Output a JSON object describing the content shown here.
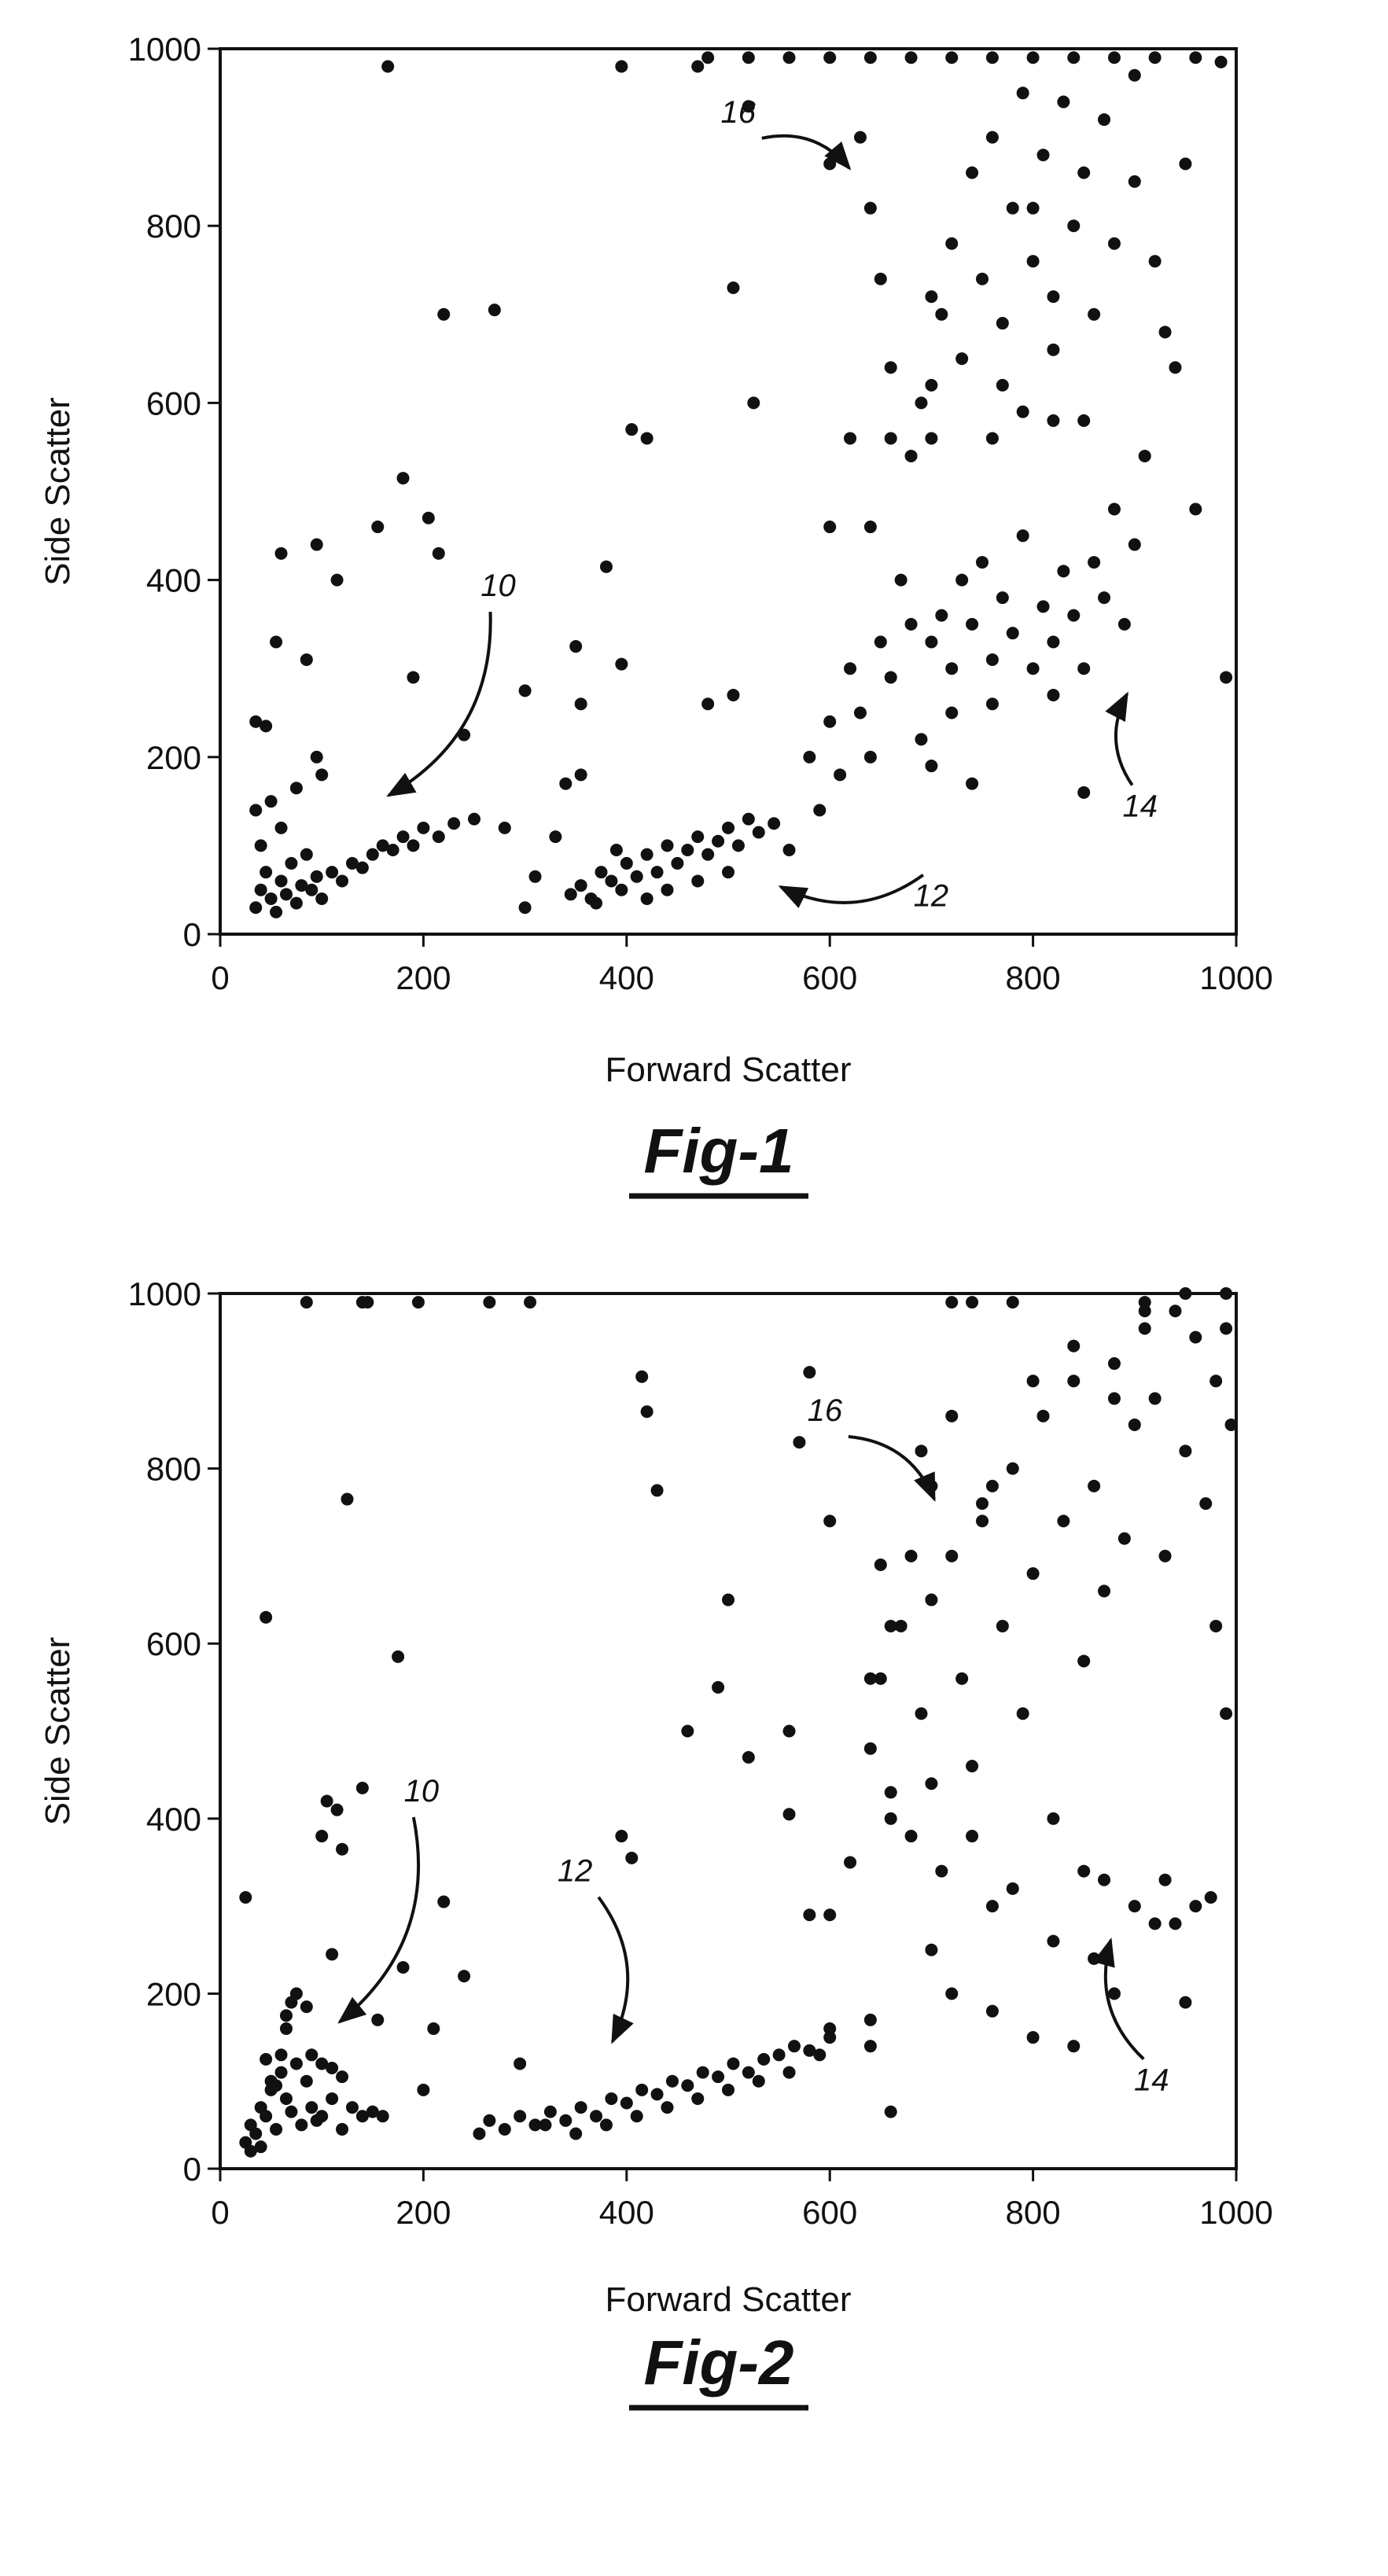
{
  "chart_data": [
    {
      "type": "scatter",
      "caption": "Fig-1",
      "x_label": "Forward Scatter",
      "y_label": "Side Scatter",
      "color": "#111111",
      "annotations": [
        "10",
        "12",
        "14",
        "16"
      ],
      "xlim": [
        0,
        1000
      ],
      "ylim": [
        0,
        1000
      ],
      "xticks": [
        0,
        200,
        400,
        600,
        800,
        1000
      ],
      "yticks": [
        0,
        200,
        400,
        600,
        800,
        1000
      ],
      "x": [
        35,
        40,
        45,
        50,
        55,
        60,
        65,
        70,
        75,
        80,
        85,
        90,
        95,
        100,
        110,
        120,
        130,
        140,
        150,
        160,
        170,
        180,
        190,
        200,
        215,
        230,
        250,
        40,
        35,
        50,
        45,
        35,
        60,
        75,
        95,
        100,
        55,
        60,
        85,
        95,
        115,
        155,
        180,
        190,
        205,
        215,
        165,
        220,
        270,
        300,
        240,
        280,
        310,
        300,
        345,
        355,
        365,
        375,
        385,
        395,
        400,
        410,
        420,
        430,
        440,
        450,
        460,
        470,
        480,
        490,
        500,
        510,
        520,
        530,
        545,
        560,
        420,
        440,
        470,
        500,
        390,
        370,
        330,
        340,
        355,
        350,
        355,
        380,
        395,
        405,
        420,
        505,
        525,
        395,
        480,
        505,
        580,
        590,
        600,
        610,
        620,
        630,
        640,
        650,
        660,
        670,
        680,
        690,
        600,
        640,
        660,
        700,
        710,
        720,
        730,
        740,
        750,
        760,
        770,
        780,
        790,
        800,
        810,
        820,
        830,
        840,
        850,
        860,
        870,
        880,
        890,
        900,
        720,
        760,
        820,
        850,
        910,
        960,
        990,
        700,
        740,
        700,
        710,
        720,
        730,
        740,
        750,
        760,
        770,
        780,
        790,
        800,
        810,
        820,
        830,
        840,
        850,
        860,
        870,
        880,
        900,
        920,
        930,
        950,
        690,
        660,
        650,
        640,
        630,
        600,
        620,
        680,
        700,
        760,
        790,
        820,
        850,
        480,
        520,
        560,
        600,
        640,
        680,
        720,
        760,
        800,
        840,
        880,
        920,
        960,
        985,
        470,
        520,
        700,
        800,
        820,
        770,
        900,
        940
      ],
      "y": [
        30,
        50,
        70,
        40,
        25,
        60,
        45,
        80,
        35,
        55,
        90,
        50,
        65,
        40,
        70,
        60,
        80,
        75,
        90,
        100,
        95,
        110,
        100,
        120,
        110,
        125,
        130,
        100,
        140,
        150,
        235,
        240,
        120,
        165,
        200,
        180,
        330,
        430,
        310,
        440,
        400,
        460,
        515,
        290,
        470,
        430,
        980,
        700,
        705,
        275,
        225,
        120,
        65,
        30,
        45,
        55,
        40,
        70,
        60,
        50,
        80,
        65,
        90,
        70,
        100,
        80,
        95,
        110,
        90,
        105,
        120,
        100,
        130,
        115,
        125,
        95,
        40,
        50,
        60,
        70,
        95,
        35,
        110,
        170,
        180,
        325,
        260,
        415,
        305,
        570,
        560,
        730,
        600,
        980,
        260,
        270,
        200,
        140,
        240,
        180,
        300,
        250,
        200,
        330,
        290,
        400,
        350,
        220,
        460,
        460,
        560,
        330,
        360,
        300,
        400,
        350,
        420,
        310,
        380,
        340,
        450,
        300,
        370,
        330,
        410,
        360,
        300,
        420,
        380,
        480,
        350,
        440,
        250,
        260,
        270,
        160,
        540,
        480,
        290,
        190,
        170,
        620,
        700,
        780,
        650,
        860,
        740,
        900,
        690,
        820,
        950,
        760,
        880,
        720,
        940,
        800,
        860,
        700,
        920,
        780,
        850,
        760,
        680,
        870,
        600,
        640,
        740,
        820,
        900,
        870,
        560,
        540,
        560,
        560,
        590,
        580,
        580,
        990,
        990,
        990,
        990,
        990,
        990,
        990,
        990,
        990,
        990,
        990,
        990,
        990,
        985,
        980,
        935,
        720,
        820,
        660,
        620,
        970,
        640
      ]
    },
    {
      "type": "scatter",
      "caption": "Fig-2",
      "x_label": "Forward Scatter",
      "y_label": "Side Scatter",
      "color": "#111111",
      "annotations": [
        "10",
        "12",
        "14",
        "16"
      ],
      "xlim": [
        0,
        1000
      ],
      "ylim": [
        0,
        1000
      ],
      "xticks": [
        0,
        200,
        400,
        600,
        800,
        1000
      ],
      "yticks": [
        0,
        200,
        400,
        600,
        800,
        1000
      ],
      "x": [
        25,
        30,
        35,
        40,
        45,
        50,
        55,
        60,
        65,
        70,
        75,
        80,
        85,
        90,
        95,
        100,
        110,
        120,
        130,
        140,
        150,
        160,
        30,
        40,
        50,
        60,
        45,
        55,
        65,
        75,
        85,
        100,
        110,
        120,
        25,
        65,
        70,
        90,
        105,
        115,
        155,
        200,
        180,
        220,
        240,
        110,
        100,
        125,
        140,
        45,
        120,
        140,
        85,
        145,
        195,
        265,
        305,
        175,
        210,
        255,
        265,
        280,
        295,
        310,
        325,
        340,
        355,
        370,
        385,
        400,
        415,
        430,
        445,
        460,
        475,
        490,
        505,
        520,
        535,
        550,
        565,
        580,
        350,
        380,
        410,
        440,
        470,
        500,
        530,
        560,
        590,
        600,
        295,
        320,
        395,
        405,
        415,
        420,
        430,
        460,
        490,
        500,
        520,
        560,
        580,
        600,
        640,
        660,
        600,
        620,
        640,
        650,
        660,
        670,
        680,
        690,
        700,
        710,
        720,
        730,
        740,
        750,
        760,
        770,
        780,
        790,
        800,
        810,
        820,
        830,
        840,
        850,
        860,
        870,
        880,
        890,
        900,
        910,
        920,
        930,
        940,
        950,
        960,
        970,
        980,
        990,
        995,
        560,
        580,
        700,
        720,
        760,
        800,
        840,
        880,
        920,
        960,
        990,
        640,
        660,
        680,
        700,
        740,
        780,
        820,
        860,
        900,
        940,
        980,
        690,
        720,
        760,
        800,
        840,
        880,
        910,
        950,
        990,
        650,
        570,
        700,
        750,
        850,
        870,
        660,
        720,
        740,
        780,
        910,
        930,
        950,
        975,
        600,
        640
      ],
      "y": [
        30,
        50,
        40,
        70,
        60,
        90,
        45,
        110,
        80,
        65,
        120,
        50,
        100,
        70,
        55,
        60,
        80,
        45,
        70,
        60,
        65,
        60,
        20,
        25,
        100,
        130,
        125,
        95,
        175,
        200,
        185,
        120,
        115,
        105,
        310,
        160,
        190,
        130,
        420,
        410,
        170,
        90,
        230,
        305,
        220,
        245,
        380,
        765,
        435,
        630,
        365,
        990,
        990,
        990,
        990,
        990,
        990,
        585,
        160,
        40,
        55,
        45,
        60,
        50,
        65,
        55,
        70,
        60,
        80,
        75,
        90,
        85,
        100,
        95,
        110,
        105,
        120,
        110,
        125,
        130,
        140,
        135,
        40,
        50,
        60,
        70,
        80,
        90,
        100,
        110,
        130,
        150,
        120,
        50,
        380,
        355,
        905,
        865,
        775,
        500,
        550,
        650,
        470,
        405,
        910,
        740,
        140,
        65,
        290,
        350,
        480,
        560,
        430,
        620,
        380,
        520,
        650,
        340,
        700,
        560,
        460,
        740,
        300,
        620,
        800,
        520,
        680,
        860,
        400,
        740,
        900,
        580,
        780,
        660,
        920,
        720,
        850,
        960,
        880,
        700,
        980,
        820,
        950,
        760,
        900,
        1000,
        850,
        500,
        290,
        250,
        200,
        180,
        150,
        140,
        200,
        280,
        300,
        520,
        560,
        620,
        700,
        440,
        380,
        320,
        260,
        240,
        300,
        280,
        620,
        820,
        860,
        780,
        900,
        940,
        880,
        980,
        1000,
        960,
        690,
        830,
        780,
        760,
        340,
        330,
        400,
        990,
        990,
        990,
        990,
        330,
        190,
        310,
        160,
        170
      ]
    }
  ]
}
